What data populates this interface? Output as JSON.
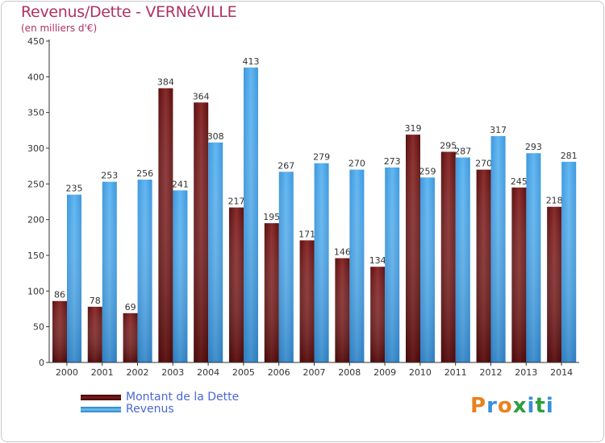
{
  "header": {
    "title": "Revenus/Dette - VERNéVILLE",
    "subtitle": "(en milliers d'€)"
  },
  "chart_data": {
    "type": "bar",
    "categories": [
      "2000",
      "2001",
      "2002",
      "2003",
      "2004",
      "2005",
      "2006",
      "2007",
      "2008",
      "2009",
      "2010",
      "2011",
      "2012",
      "2013",
      "2014"
    ],
    "series": [
      {
        "name": "Montant de la Dette",
        "color": "#7a1a1a",
        "values": [
          86,
          78,
          69,
          384,
          364,
          217,
          195,
          171,
          146,
          134,
          319,
          295,
          270,
          245,
          218
        ]
      },
      {
        "name": "Revenus",
        "color": "#4aa3e6",
        "values": [
          235,
          253,
          256,
          241,
          308,
          413,
          267,
          279,
          270,
          273,
          259,
          287,
          317,
          293,
          281
        ]
      }
    ],
    "ylim": [
      0,
      450
    ],
    "yticks": [
      0,
      50,
      100,
      150,
      200,
      250,
      300,
      350,
      400,
      450
    ],
    "grid": false,
    "legend_position": "bottom-left"
  },
  "logo": {
    "letters": [
      "P",
      "r",
      "o",
      "x",
      "i",
      "t",
      "i"
    ],
    "colors": [
      "#e8821e",
      "#3a8fd8",
      "#e8821e",
      "#2e9e3e",
      "#3a8fd8",
      "#2e9e3e",
      "#3a8fd8"
    ]
  }
}
